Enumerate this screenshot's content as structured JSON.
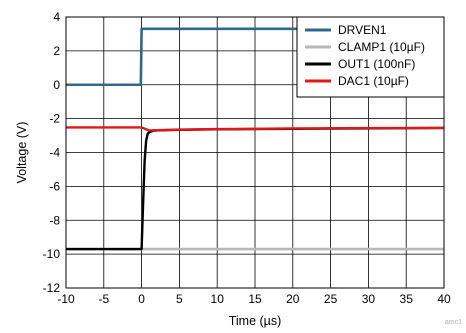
{
  "chart_data": {
    "type": "line",
    "title": "",
    "xlabel": "Time (µs)",
    "ylabel": "Voltage (V)",
    "xlim": [
      -10,
      40
    ],
    "ylim": [
      -12,
      4
    ],
    "xticks": [
      -10,
      -5,
      0,
      5,
      10,
      15,
      20,
      25,
      30,
      35,
      40
    ],
    "yticks": [
      -12,
      -10,
      -8,
      -6,
      -4,
      -2,
      0,
      2,
      4
    ],
    "grid": true,
    "legend_position": "top-right",
    "series": [
      {
        "name": "DRVEN1",
        "color": "#336688",
        "x": [
          -10,
          -0.1,
          0,
          40
        ],
        "y": [
          0,
          0,
          3.3,
          3.3
        ]
      },
      {
        "name": "CLAMP1 (10µF)",
        "color": "#b8b8b8",
        "x": [
          -10,
          0,
          40
        ],
        "y": [
          -9.7,
          -9.7,
          -9.7
        ]
      },
      {
        "name": "OUT1 (100nF)",
        "color": "#000000",
        "x": [
          -10,
          0,
          0.2,
          0.4,
          0.6,
          0.8,
          1.0,
          1.5,
          2.0,
          3.0,
          5.0,
          10.0,
          20.0,
          40.0
        ],
        "y": [
          -9.7,
          -9.7,
          -7.0,
          -4.5,
          -3.3,
          -2.9,
          -2.8,
          -2.72,
          -2.7,
          -2.68,
          -2.66,
          -2.63,
          -2.6,
          -2.55
        ]
      },
      {
        "name": "DAC1 (10µF)",
        "color": "#e01818",
        "x": [
          -10,
          -5,
          0,
          1,
          5,
          10,
          20,
          30,
          40
        ],
        "y": [
          -2.52,
          -2.52,
          -2.52,
          -2.7,
          -2.65,
          -2.62,
          -2.58,
          -2.56,
          -2.55
        ]
      }
    ],
    "watermark": "amc1"
  }
}
